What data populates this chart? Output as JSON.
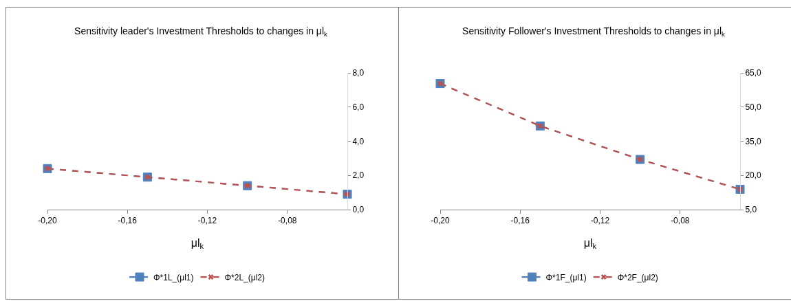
{
  "chart_data": [
    {
      "type": "line",
      "title": "Sensitivity leader's Investment Thresholds to changes in μl$_{k}$",
      "xlabel": "μl$_{k}$",
      "x": [
        -0.2,
        -0.15,
        -0.1,
        -0.05
      ],
      "series": [
        {
          "name": "Φ*1L_(μl1)",
          "color": "#4f81bd",
          "marker": "square",
          "line_style": "dashed",
          "values": [
            2.4,
            1.9,
            1.4,
            0.9
          ]
        },
        {
          "name": "Φ*2L_(μl2)",
          "color": "#c0504d",
          "marker": "cross",
          "line_style": "dashed",
          "values": [
            2.4,
            1.9,
            1.4,
            0.9
          ]
        }
      ],
      "xlim": [
        -0.2,
        -0.05
      ],
      "xticks": [
        {
          "value": -0.2,
          "label": "-0,20"
        },
        {
          "value": -0.16,
          "label": "-0,16"
        },
        {
          "value": -0.12,
          "label": "-0,12"
        },
        {
          "value": -0.08,
          "label": "-0,08"
        }
      ],
      "ylim": [
        0,
        8
      ],
      "yticks": [
        {
          "value": 0,
          "label": "0,0"
        },
        {
          "value": 2,
          "label": "2,0"
        },
        {
          "value": 4,
          "label": "4,0"
        },
        {
          "value": 6,
          "label": "6,0"
        },
        {
          "value": 8,
          "label": "8,0"
        }
      ],
      "grid": false,
      "legend": "bottom"
    },
    {
      "type": "line",
      "title": "Sensitivity Follower's Investment Thresholds to changes in μl$_{k}$",
      "xlabel": "μl$_{k}$",
      "x": [
        -0.2,
        -0.15,
        -0.1,
        -0.05
      ],
      "series": [
        {
          "name": "Φ*1F_(μl1)",
          "color": "#4f81bd",
          "marker": "square",
          "line_style": "dashed",
          "values": [
            60.3,
            41.7,
            27.0,
            13.9
          ]
        },
        {
          "name": "Φ*2F_(μl2)",
          "color": "#c0504d",
          "marker": "cross",
          "line_style": "dashed",
          "values": [
            60.3,
            41.7,
            27.0,
            13.9
          ]
        }
      ],
      "xlim": [
        -0.2,
        -0.05
      ],
      "xticks": [
        {
          "value": -0.2,
          "label": "-0,20"
        },
        {
          "value": -0.16,
          "label": "-0,16"
        },
        {
          "value": -0.12,
          "label": "-0,12"
        },
        {
          "value": -0.08,
          "label": "-0,08"
        }
      ],
      "ylim": [
        5,
        65
      ],
      "yticks": [
        {
          "value": 5,
          "label": "5,0"
        },
        {
          "value": 20,
          "label": "20,0"
        },
        {
          "value": 35,
          "label": "35,0"
        },
        {
          "value": 50,
          "label": "50,0"
        },
        {
          "value": 65,
          "label": "65,0"
        }
      ],
      "grid": false,
      "legend": "bottom"
    }
  ]
}
